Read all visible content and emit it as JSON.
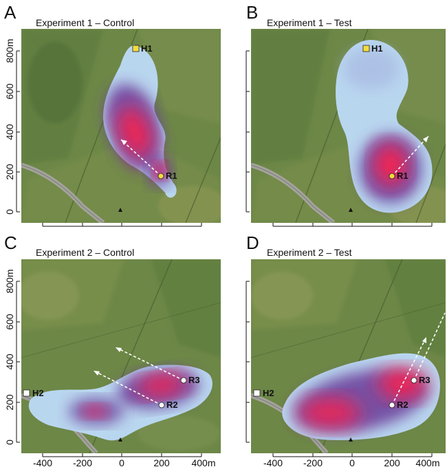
{
  "colors": {
    "field_base": "#6d8747",
    "field_dark": "#53703a",
    "field_light": "#8e9a58",
    "road": "#9c9c96",
    "density_low": "#b9d6ef",
    "density_mid": "#5a2a8a",
    "density_high": "#ff1a4a",
    "hive_marker": "#f4dc3c",
    "release_point": "#ffffff",
    "arrow": "#ffffff"
  },
  "chart_data": [
    {
      "type": "heatmap",
      "panel_letter": "A",
      "title": "Experiment 1 – Control",
      "xlim": [
        -500,
        500
      ],
      "ylim": [
        -50,
        880
      ],
      "x_ticks": [
        -400,
        -200,
        0,
        200,
        400
      ],
      "y_ticks": [
        0,
        200,
        400,
        600,
        800
      ],
      "x_tick_labels": [],
      "y_tick_labels": [
        "0",
        "200",
        "400",
        "600",
        "800m"
      ],
      "markers": [
        {
          "label": "H1",
          "kind": "hive",
          "x": 70,
          "y": 820
        },
        {
          "label": "R1",
          "kind": "release",
          "x": 200,
          "y": 180
        }
      ],
      "landmark": {
        "x": 0,
        "y": 0
      },
      "arrows": [
        {
          "from": [
            200,
            180
          ],
          "to": [
            -20,
            370
          ]
        }
      ],
      "density_hotspots": [
        {
          "x": 50,
          "y": 400,
          "weight": 1.0
        },
        {
          "x": 180,
          "y": 200,
          "weight": 0.8
        }
      ]
    },
    {
      "type": "heatmap",
      "panel_letter": "B",
      "title": "Experiment 1 – Test",
      "xlim": [
        -500,
        500
      ],
      "ylim": [
        -50,
        880
      ],
      "x_ticks": [
        -400,
        -200,
        0,
        200,
        400
      ],
      "y_ticks": [
        0,
        200,
        400,
        600,
        800
      ],
      "x_tick_labels": [],
      "y_tick_labels": [],
      "markers": [
        {
          "label": "H1",
          "kind": "hive",
          "x": 70,
          "y": 820
        },
        {
          "label": "R1",
          "kind": "release",
          "x": 200,
          "y": 180
        }
      ],
      "landmark": {
        "x": 0,
        "y": 0
      },
      "arrows": [
        {
          "from": [
            200,
            180
          ],
          "to": [
            370,
            380
          ]
        }
      ],
      "density_hotspots": [
        {
          "x": 200,
          "y": 230,
          "weight": 1.0
        }
      ]
    },
    {
      "type": "heatmap",
      "panel_letter": "C",
      "title": "Experiment 2 – Control",
      "xlim": [
        -500,
        500
      ],
      "ylim": [
        -50,
        880
      ],
      "x_ticks": [
        -400,
        -200,
        0,
        200,
        400
      ],
      "y_ticks": [
        0,
        200,
        400,
        600,
        800
      ],
      "x_tick_labels": [],
      "y_tick_labels": [
        "0",
        "200",
        "400",
        "600",
        "800m"
      ],
      "markers": [
        {
          "label": "H2",
          "kind": "hive",
          "x": -470,
          "y": 240
        },
        {
          "label": "R2",
          "kind": "release",
          "x": 200,
          "y": 180
        },
        {
          "label": "R3",
          "kind": "release",
          "x": 310,
          "y": 300
        }
      ],
      "landmark": {
        "x": 0,
        "y": 0
      },
      "arrows": [
        {
          "from": [
            200,
            180
          ],
          "to": [
            -140,
            360
          ]
        },
        {
          "from": [
            310,
            300
          ],
          "to": [
            -30,
            470
          ]
        }
      ],
      "density_hotspots": [
        {
          "x": 200,
          "y": 260,
          "weight": 1.0
        },
        {
          "x": -150,
          "y": 140,
          "weight": 0.55
        }
      ]
    },
    {
      "type": "heatmap",
      "panel_letter": "D",
      "title": "Experiment 2 – Test",
      "xlim": [
        -500,
        500
      ],
      "ylim": [
        -50,
        880
      ],
      "x_ticks": [
        -400,
        -200,
        0,
        200,
        400
      ],
      "y_ticks": [
        0,
        200,
        400,
        600,
        800
      ],
      "x_tick_labels": [
        "-400",
        "-200",
        "0",
        "200",
        "400m"
      ],
      "y_tick_labels": [],
      "markers": [
        {
          "label": "H2",
          "kind": "hive",
          "x": -470,
          "y": 240
        },
        {
          "label": "R2",
          "kind": "release",
          "x": 200,
          "y": 180
        },
        {
          "label": "R3",
          "kind": "release",
          "x": 310,
          "y": 300
        }
      ],
      "landmark": {
        "x": 0,
        "y": 0
      },
      "arrows": [
        {
          "from": [
            200,
            180
          ],
          "to": [
            370,
            520
          ]
        },
        {
          "from": [
            310,
            300
          ],
          "to": [
            480,
            650
          ]
        }
      ],
      "density_hotspots": [
        {
          "x": 250,
          "y": 260,
          "weight": 1.0
        },
        {
          "x": -150,
          "y": 150,
          "weight": 0.8
        }
      ]
    }
  ],
  "shared_x_tick_labels": [
    "-400",
    "-200",
    "0",
    "200",
    "400m"
  ]
}
